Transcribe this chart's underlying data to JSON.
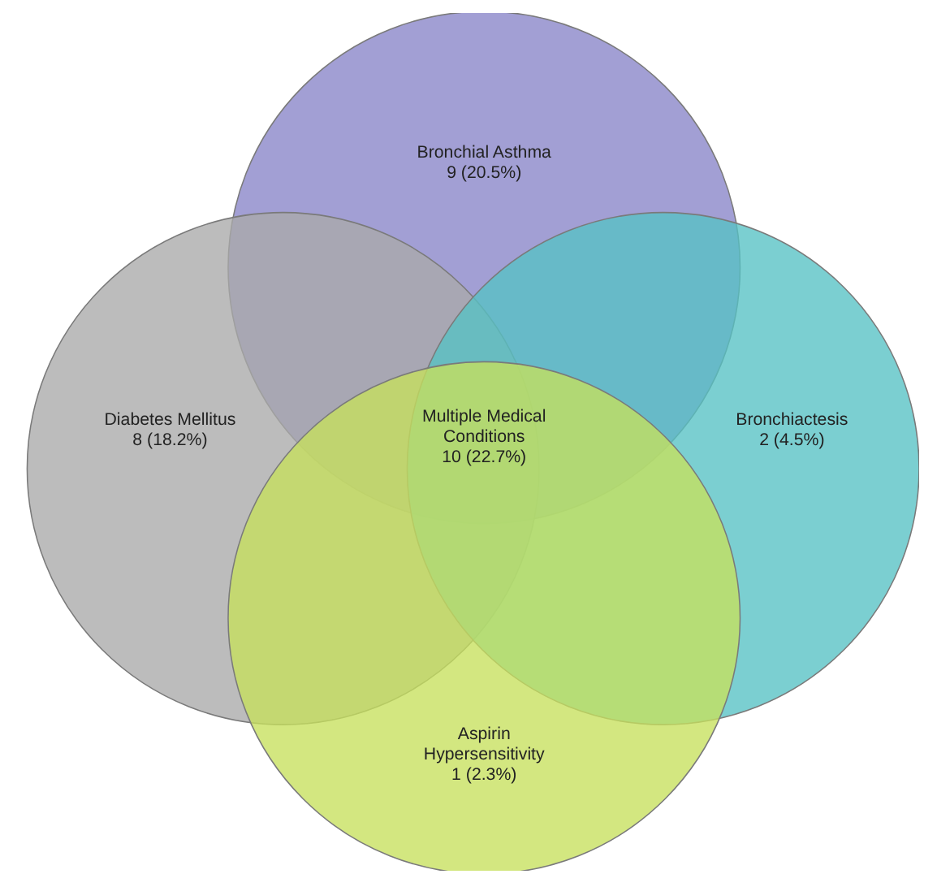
{
  "chart_data": {
    "type": "other",
    "categories": [
      "Bronchial Asthma",
      "Diabetes Mellitus",
      "Bronchiactesis",
      "Aspirin Hypersensitivity",
      "Multiple Medical Conditions"
    ],
    "values": [
      9,
      8,
      2,
      1,
      10
    ],
    "value_labels": [
      "9 (20.5%)",
      "8 (18.2%)",
      "2 (4.5%)",
      "1 (2.3%)",
      "10 (22.7%)"
    ],
    "colors": [
      "#8884c8",
      "#a9a9a9",
      "#56c2c4",
      "#c6e05c",
      null
    ]
  }
}
